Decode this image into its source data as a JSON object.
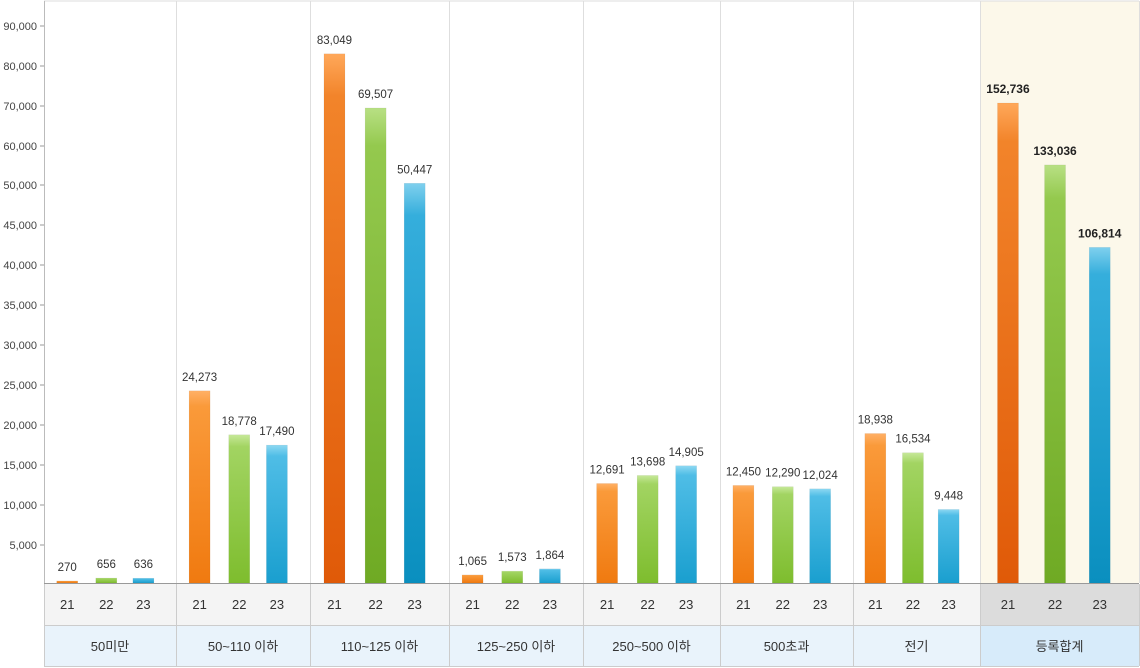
{
  "chart_data": {
    "type": "bar",
    "ylim": [
      0,
      90000
    ],
    "y_ticks": [
      "5,000",
      "10,000",
      "15,000",
      "20,000",
      "25,000",
      "30,000",
      "35,000",
      "40,000",
      "45,000",
      "50,000",
      "60,000",
      "70,000",
      "80,000",
      "90,000"
    ],
    "y_tick_values": [
      5000,
      10000,
      15000,
      20000,
      25000,
      30000,
      35000,
      40000,
      45000,
      50000,
      60000,
      70000,
      80000,
      90000
    ],
    "series_ticks": [
      "21",
      "22",
      "23"
    ],
    "series_colors": [
      "#f07f17",
      "#7fc433",
      "#1aa3cf"
    ],
    "groups": [
      {
        "category": "50미만",
        "values": [
          270,
          656,
          636
        ],
        "labels": [
          "270",
          "656",
          "636"
        ]
      },
      {
        "category": "50~110 이하",
        "values": [
          24273,
          18778,
          17490
        ],
        "labels": [
          "24,273",
          "18,778",
          "17,490"
        ]
      },
      {
        "category": "110~125 이하",
        "values": [
          83049,
          69507,
          50447
        ],
        "labels": [
          "83,049",
          "69,507",
          "50,447"
        ]
      },
      {
        "category": "125~250 이하",
        "values": [
          1065,
          1573,
          1864
        ],
        "labels": [
          "1,065",
          "1,573",
          "1,864"
        ]
      },
      {
        "category": "250~500 이하",
        "values": [
          12691,
          13698,
          14905
        ],
        "labels": [
          "12,691",
          "13,698",
          "14,905"
        ]
      },
      {
        "category": "500초과",
        "values": [
          12450,
          12290,
          12024
        ],
        "labels": [
          "12,450",
          "12,290",
          "12,024"
        ]
      },
      {
        "category": "전기",
        "values": [
          18938,
          16534,
          9448
        ],
        "labels": [
          "18,938",
          "16,534",
          "9,448"
        ]
      },
      {
        "category": "등록합계",
        "values": [
          152736,
          133036,
          106814
        ],
        "labels": [
          "152,736",
          "133,036",
          "106,814"
        ],
        "highlight": true
      }
    ]
  }
}
